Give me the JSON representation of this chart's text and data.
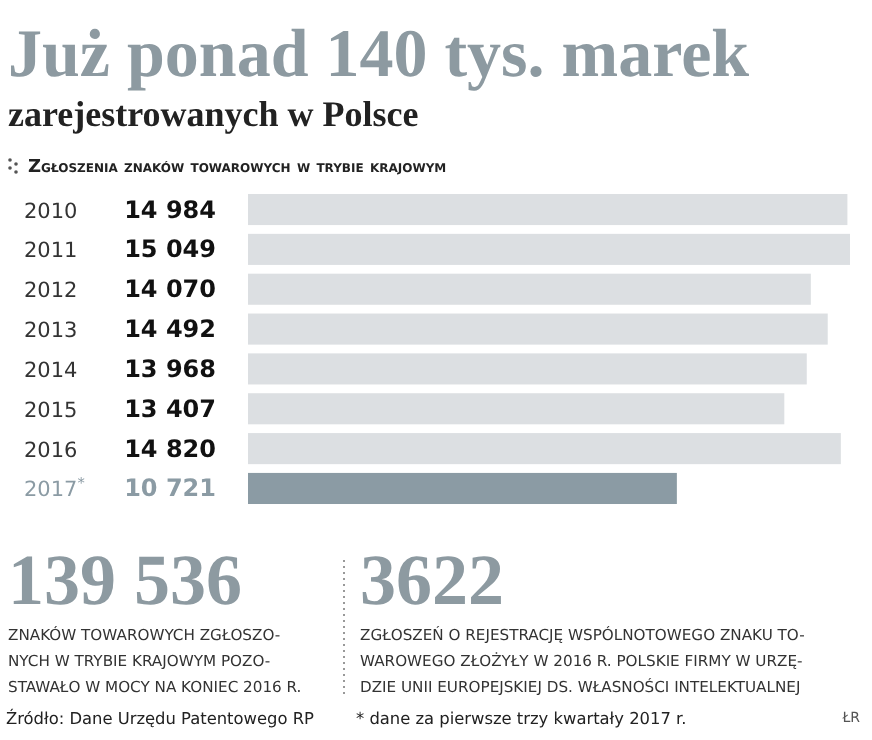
{
  "chart_data": {
    "type": "bar",
    "orientation": "horizontal",
    "title": "Już ponad 140 tys. marek",
    "subtitle": "zarejestrowanych w Polsce",
    "xlabel": "Zgłoszenia znaków towarowych w trybie krajowym",
    "categories": [
      "2010",
      "2011",
      "2012",
      "2013",
      "2014",
      "2015",
      "2016",
      "2017$^{*}$"
    ],
    "values": [
      14984,
      15049,
      14070,
      14492,
      13968,
      13407,
      14820,
      10721
    ],
    "value_labels": [
      "14 984",
      "15 049",
      "14 070",
      "14 492",
      "13 968",
      "13 407",
      "14 820",
      "10 721"
    ],
    "colors": [
      "#dcdfe2",
      "#dcdfe2",
      "#dcdfe2",
      "#dcdfe2",
      "#dcdfe2",
      "#dcdfe2",
      "#dcdfe2",
      "#8b9ba4"
    ],
    "annotations": [
      "139 536",
      "ZNAKÓW TOWAROWYCH ZGŁOSZO-\nNYCH W TRYBIE KRAJOWYM POZO-\nSTAWAŁO W MOCY NA KONIEC 2016 R.",
      "3622",
      "ZGŁOSZEŃ O REJESTRACJĘ WSPÓLNOTOWEGO ZNAKU TO-\nWAROWEGO ZŁOŻYŁY W 2016 R. POLSKIE FIRMY W URZĘ-\nDZIE UNII EUROPEJSKIEJ DS. WŁASNOŚCI INTELEKTUALNEJ",
      "Źródło: Dane Urzędu Patentowego RP",
      "* dane za pierwsze trzy kwartały 2017 r.",
      "ŁR"
    ]
  }
}
